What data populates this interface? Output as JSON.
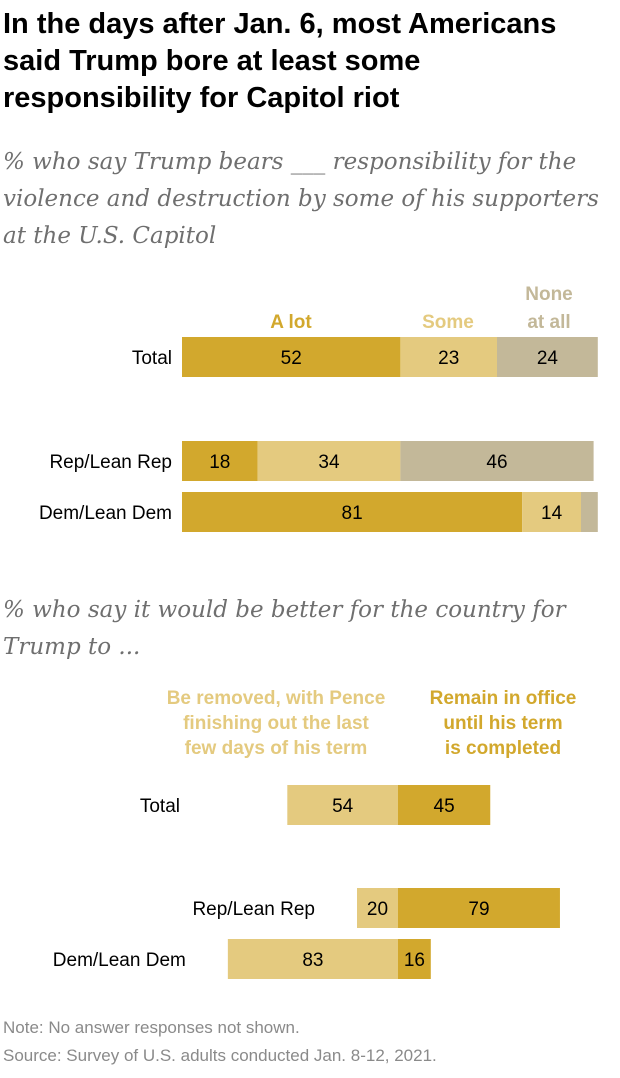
{
  "title": "In the days after Jan. 6, most Americans said Trump bore at least some responsibility for Capitol riot",
  "note": "Note: No answer responses not shown.",
  "source": "Source: Survey of U.S. adults conducted Jan. 8-12, 2021.",
  "colors": {
    "a_lot": "#D2A82D",
    "some": "#E4CA7F",
    "none_at_all": "#C3B899",
    "remove": "#E4CA7F",
    "remain": "#D2A82D",
    "text_dark": "#000000",
    "subtitle": "#6f6f6f",
    "note": "#8a8a8a"
  },
  "chart_data": [
    {
      "type": "bar",
      "orientation": "horizontal",
      "stacked": true,
      "title": "% who say Trump bears ___ responsibility for the violence and destruction by some of his supporters at the U.S. Capitol",
      "categories": [
        "Total",
        "Rep/Lean Rep",
        "Dem/Lean Dem"
      ],
      "series": [
        {
          "name": "A lot",
          "values": [
            52,
            18,
            81
          ]
        },
        {
          "name": "Some",
          "values": [
            23,
            34,
            14
          ]
        },
        {
          "name": "None at all",
          "values": [
            24,
            46,
            4
          ]
        }
      ],
      "data_labels": [
        [
          "52",
          "23",
          "24"
        ],
        [
          "18",
          "34",
          "46"
        ],
        [
          "81",
          "14",
          ""
        ]
      ],
      "legend_labels": [
        [
          "A lot"
        ],
        [
          "Some"
        ],
        [
          "None",
          "at all"
        ]
      ],
      "xlim": [
        0,
        100
      ],
      "grid": false
    },
    {
      "type": "bar",
      "orientation": "horizontal",
      "diverging": true,
      "title": "% who say it would be better for the country for Trump to ...",
      "categories": [
        "Total",
        "Rep/Lean Rep",
        "Dem/Lean Dem"
      ],
      "series": [
        {
          "name": "Be removed, with Pence finishing out the last few days of his term",
          "values": [
            54,
            20,
            83
          ]
        },
        {
          "name": "Remain in office until his term is completed",
          "values": [
            45,
            79,
            16
          ]
        }
      ],
      "data_labels": [
        [
          "54",
          "45"
        ],
        [
          "20",
          "79"
        ],
        [
          "83",
          "16"
        ]
      ],
      "legend_labels": [
        [
          "Be removed, with Pence",
          "finishing out the last",
          "few days of his term"
        ],
        [
          "Remain in office",
          "until his term",
          "is completed"
        ]
      ],
      "grid": false
    }
  ]
}
